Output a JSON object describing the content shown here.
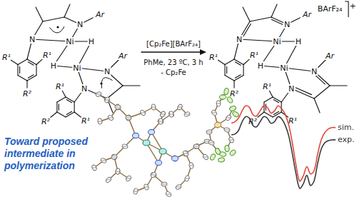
{
  "scheme": {
    "atom_labels": {
      "N": "N",
      "Ni": "Ni",
      "H": "H",
      "Ar": "Ar",
      "R1": "R¹",
      "R2": "R²"
    },
    "reagent": "[Cp₂Fe][BArF₂₄]",
    "conditions": "PhMe, 23 ºC, 3 h",
    "byproduct": "- Cp₂Fe",
    "counterion": "BArF₂₄",
    "charge": "+"
  },
  "caption": "Toward proposed intermediate in polymerization",
  "chart_data": {
    "type": "line",
    "categories": [
      null,
      null,
      null,
      null,
      null,
      null,
      null,
      null,
      null,
      null,
      null,
      null,
      null,
      null,
      null,
      null,
      null,
      null,
      null,
      null,
      null,
      null,
      null,
      null,
      null,
      null,
      null,
      null,
      null,
      null
    ],
    "series": [
      {
        "name": "sim.",
        "color": "#e0483c",
        "values": [
          2.8,
          3.0,
          3.5,
          4.5,
          5.2,
          5.0,
          4.0,
          3.8,
          4.5,
          5.2,
          5.0,
          4.2,
          4.5,
          5.2,
          4.8,
          4.0,
          2.5,
          0.0,
          -3.0,
          -5.2,
          -4.5,
          -3.2,
          -4.2,
          -3.8,
          -1.5,
          0.5,
          1.5,
          2.0,
          2.2,
          2.2
        ]
      },
      {
        "name": "exp.",
        "color": "#3a3a3a",
        "values": [
          1.2,
          1.3,
          1.8,
          3.0,
          3.7,
          3.5,
          2.5,
          2.3,
          3.0,
          3.7,
          3.5,
          2.8,
          3.0,
          3.7,
          3.4,
          2.5,
          1.0,
          -1.5,
          -4.2,
          -6.2,
          -5.6,
          -4.4,
          -5.8,
          -5.2,
          -2.8,
          -0.8,
          0.1,
          0.4,
          0.5,
          0.5
        ]
      }
    ],
    "ylim": [
      -7,
      7
    ],
    "grid": false,
    "tick_labels": false
  }
}
